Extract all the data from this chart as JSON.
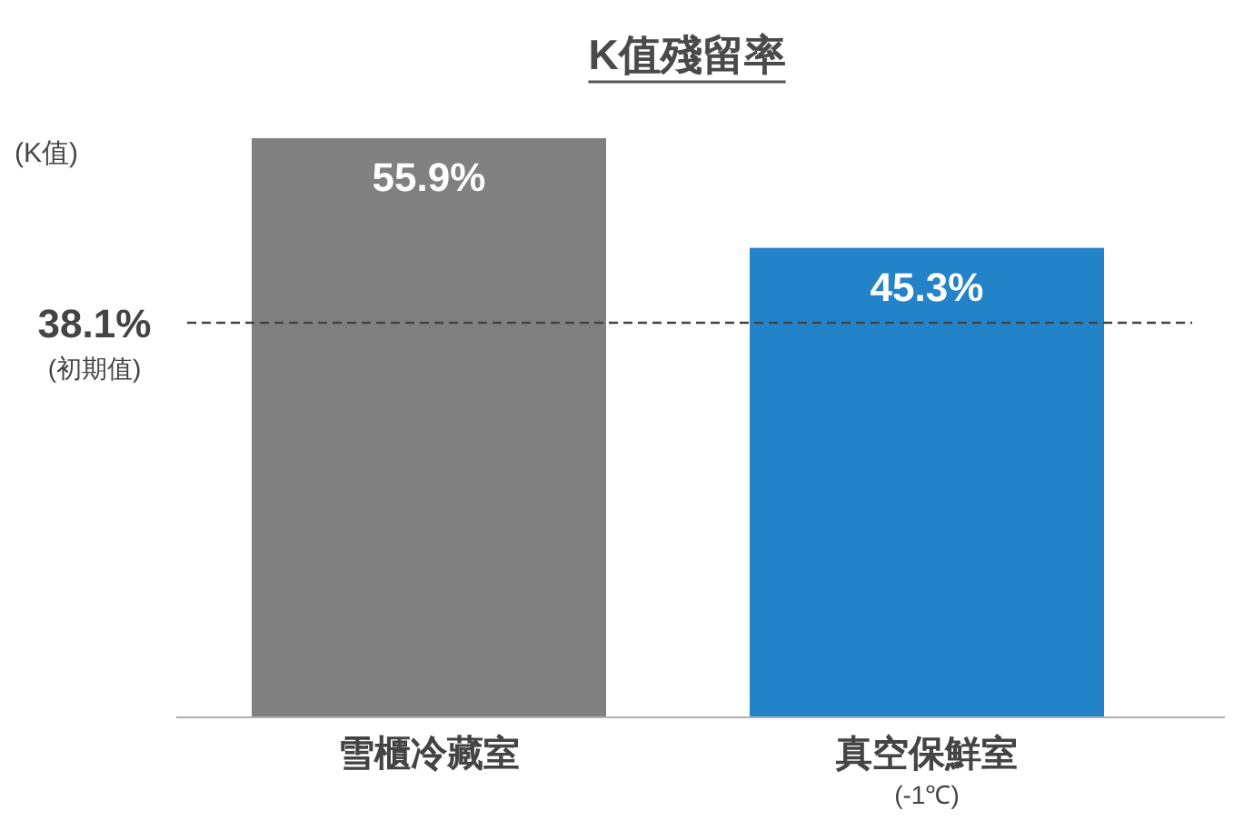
{
  "chart_data": {
    "type": "bar",
    "title": "K值殘留率",
    "ylabel": "(K值)",
    "categories": [
      "雪櫃冷藏室",
      "真空保鮮室\n(-1℃)"
    ],
    "values": [
      55.9,
      45.3
    ],
    "colors": [
      "#808080",
      "#2383c8"
    ],
    "value_labels": [
      "55.9%",
      "45.3%"
    ],
    "ref_lines": [
      {
        "axis": "y",
        "value": 38.1,
        "label": "38.1%\n(初期值)",
        "color": "#444444",
        "line_style": "dashed"
      }
    ]
  }
}
